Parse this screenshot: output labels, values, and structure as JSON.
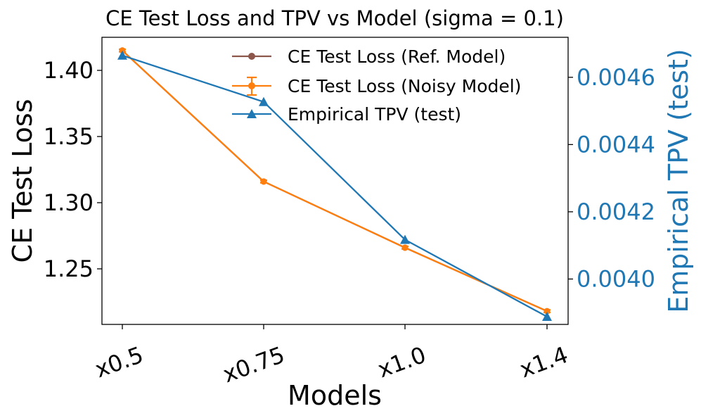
{
  "chart_data": {
    "type": "line",
    "title": "CE Test Loss and TPV vs Model (sigma = 0.1)",
    "xlabel": "Models",
    "ylabel_left": "CE Test Loss",
    "ylabel_right": "Empirical TPV (test)",
    "categories": [
      "x0.5",
      "x0.75",
      "x1.0",
      "x1.4"
    ],
    "left_axis": {
      "ylim": [
        1.208,
        1.425
      ],
      "ticks": [
        1.25,
        1.3,
        1.35,
        1.4
      ],
      "tick_labels": [
        "1.25",
        "1.30",
        "1.35",
        "1.40"
      ]
    },
    "right_axis": {
      "ylim": [
        0.003865,
        0.004719
      ],
      "ticks": [
        0.004,
        0.0042,
        0.0044,
        0.0046
      ],
      "tick_labels": [
        "0.0040",
        "0.0042",
        "0.0044",
        "0.0046"
      ]
    },
    "series": [
      {
        "name": "CE Test Loss (Ref. Model)",
        "axis": "left",
        "color": "#8c564b",
        "marker": "circle",
        "values": [
          1.415,
          1.316,
          1.266,
          1.218
        ]
      },
      {
        "name": "CE Test Loss (Noisy Model)",
        "axis": "left",
        "color": "#ff7f0e",
        "marker": "circle",
        "errorbar": true,
        "values": [
          1.415,
          1.316,
          1.266,
          1.218
        ],
        "errors": [
          0.001,
          0.001,
          0.001,
          0.001
        ]
      },
      {
        "name": "Empirical TPV (test)",
        "axis": "right",
        "color": "#1f77b4",
        "marker": "triangle",
        "values": [
          0.004665,
          0.004527,
          0.004117,
          0.003888
        ]
      }
    ],
    "legend": "upper-right"
  }
}
